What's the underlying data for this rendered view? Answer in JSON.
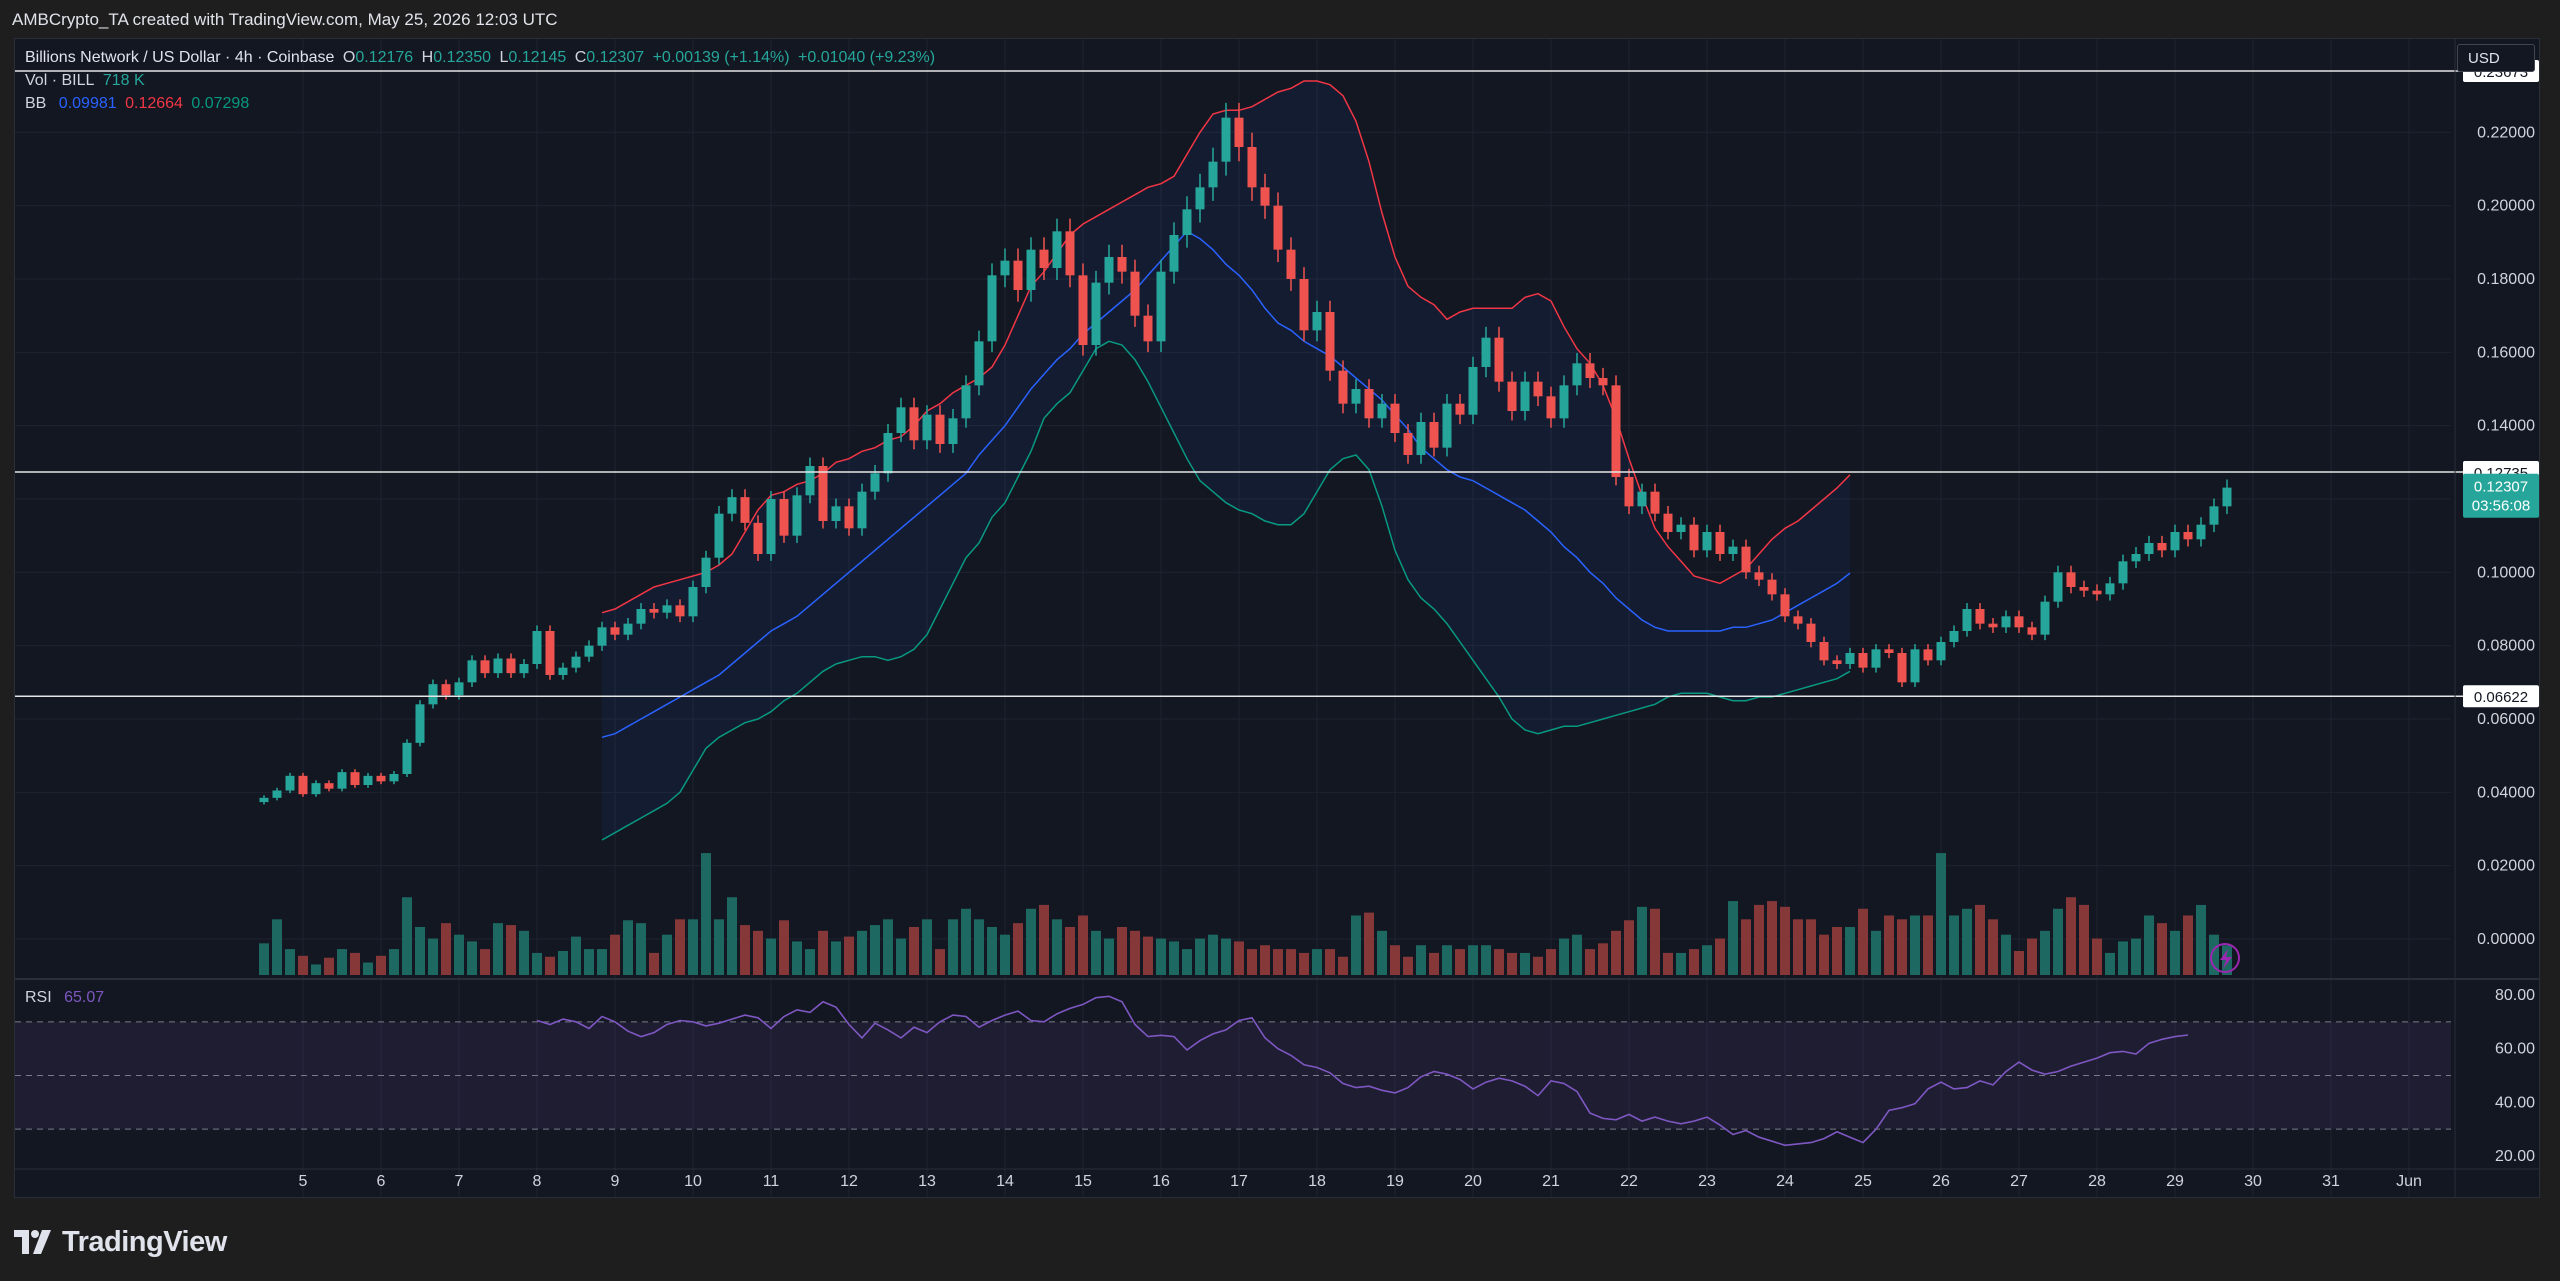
{
  "caption": "AMBCrypto_TA created with TradingView.com, May 25, 2026 12:03 UTC",
  "brand": "TradingView",
  "header": {
    "symbol": "Billions Network / US Dollar · 4h · Coinbase",
    "o_label": "O",
    "o_value": "0.12176",
    "h_label": "H",
    "h_value": "0.12350",
    "l_label": "L",
    "l_value": "0.12145",
    "c_label": "C",
    "c_value": "0.12307",
    "change": "+0.00139 (+1.14%)",
    "change2": "+0.01040 (+9.23%)",
    "vol_label": "Vol · BILL",
    "vol_value": "718 K",
    "bb_label": "BB",
    "bb_mid": "0.09981",
    "bb_upper": "0.12664",
    "bb_lower": "0.07298",
    "rsi_label": "RSI",
    "rsi_value": "65.07"
  },
  "currency_button": "USD",
  "colors": {
    "up": "#26a69a",
    "down": "#ef5350",
    "bb_mid": "#2962ff",
    "bb_upper": "#f23645",
    "bb_lower": "#089981",
    "rsi": "#7e57c2",
    "bg": "#131722",
    "grid": "#1f2330"
  },
  "chart_data": {
    "type": "candlestick",
    "price_axis": {
      "ticks": [
        "0.22000",
        "0.20000",
        "0.18000",
        "0.16000",
        "0.14000",
        "0.12000",
        "0.10000",
        "0.08000",
        "0.06000",
        "0.04000",
        "0.02000",
        "0.00000"
      ],
      "min": -0.015,
      "max": 0.24
    },
    "horizontal_lines": [
      {
        "price": 0.23673,
        "label": "0.23673"
      },
      {
        "price": 0.12735,
        "label": "0.12735"
      },
      {
        "price": 0.06622,
        "label": "0.06622"
      }
    ],
    "last_price": {
      "price": 0.12307,
      "label": "0.12307",
      "countdown": "03:56:08"
    },
    "time_axis": [
      "5",
      "6",
      "7",
      "8",
      "9",
      "10",
      "11",
      "12",
      "13",
      "14",
      "15",
      "16",
      "17",
      "18",
      "19",
      "20",
      "21",
      "22",
      "23",
      "24",
      "25",
      "26",
      "27",
      "28",
      "29",
      "30",
      "31",
      "Jun"
    ],
    "candles_per_day": 6,
    "first_candle_day": 4.5,
    "closes": [
      0.0385,
      0.0405,
      0.0445,
      0.0395,
      0.0425,
      0.041,
      0.0455,
      0.042,
      0.0445,
      0.043,
      0.045,
      0.0535,
      0.064,
      0.0695,
      0.0665,
      0.07,
      0.076,
      0.0725,
      0.0765,
      0.0725,
      0.075,
      0.084,
      0.072,
      0.074,
      0.077,
      0.08,
      0.085,
      0.083,
      0.086,
      0.09,
      0.089,
      0.091,
      0.088,
      0.096,
      0.104,
      0.116,
      0.1205,
      0.1135,
      0.105,
      0.12,
      0.11,
      0.121,
      0.129,
      0.114,
      0.118,
      0.112,
      0.122,
      0.127,
      0.138,
      0.145,
      0.136,
      0.143,
      0.135,
      0.142,
      0.151,
      0.163,
      0.181,
      0.185,
      0.177,
      0.188,
      0.183,
      0.193,
      0.181,
      0.162,
      0.179,
      0.186,
      0.182,
      0.17,
      0.163,
      0.182,
      0.192,
      0.199,
      0.205,
      0.212,
      0.224,
      0.216,
      0.205,
      0.2,
      0.188,
      0.18,
      0.166,
      0.171,
      0.155,
      0.146,
      0.15,
      0.142,
      0.146,
      0.138,
      0.132,
      0.141,
      0.134,
      0.146,
      0.143,
      0.156,
      0.164,
      0.152,
      0.144,
      0.152,
      0.148,
      0.142,
      0.151,
      0.157,
      0.153,
      0.151,
      0.126,
      0.118,
      0.122,
      0.116,
      0.111,
      0.113,
      0.106,
      0.111,
      0.105,
      0.107,
      0.1,
      0.098,
      0.094,
      0.088,
      0.086,
      0.081,
      0.076,
      0.075,
      0.078,
      0.074,
      0.079,
      0.078,
      0.07,
      0.079,
      0.076,
      0.081,
      0.084,
      0.09,
      0.086,
      0.085,
      0.088,
      0.085,
      0.083,
      0.092,
      0.1,
      0.096,
      0.095,
      0.094,
      0.097,
      0.103,
      0.105,
      0.108,
      0.106,
      0.111,
      0.109,
      0.113,
      0.118,
      0.1231
    ],
    "bb_start_index": 26,
    "bb_upper_values": [
      0.089,
      0.09,
      0.092,
      0.094,
      0.096,
      0.097,
      0.098,
      0.099,
      0.1,
      0.102,
      0.105,
      0.111,
      0.117,
      0.121,
      0.122,
      0.124,
      0.125,
      0.127,
      0.13,
      0.131,
      0.133,
      0.134,
      0.136,
      0.137,
      0.14,
      0.144,
      0.146,
      0.149,
      0.151,
      0.153,
      0.156,
      0.162,
      0.17,
      0.178,
      0.182,
      0.187,
      0.192,
      0.195,
      0.197,
      0.199,
      0.201,
      0.203,
      0.205,
      0.206,
      0.208,
      0.214,
      0.22,
      0.225,
      0.226,
      0.226,
      0.227,
      0.229,
      0.231,
      0.232,
      0.234,
      0.234,
      0.233,
      0.23,
      0.223,
      0.212,
      0.198,
      0.186,
      0.178,
      0.175,
      0.173,
      0.169,
      0.171,
      0.172,
      0.172,
      0.172,
      0.172,
      0.175,
      0.176,
      0.174,
      0.167,
      0.161,
      0.157,
      0.151,
      0.142,
      0.131,
      0.121,
      0.112,
      0.107,
      0.103,
      0.099,
      0.098,
      0.097,
      0.099,
      0.101,
      0.105,
      0.109,
      0.112,
      0.114,
      0.117,
      0.12,
      0.123,
      0.1266
    ],
    "bb_mid_values": [
      0.055,
      0.056,
      0.058,
      0.06,
      0.062,
      0.064,
      0.066,
      0.068,
      0.07,
      0.072,
      0.075,
      0.078,
      0.081,
      0.084,
      0.086,
      0.088,
      0.091,
      0.094,
      0.097,
      0.1,
      0.103,
      0.106,
      0.109,
      0.112,
      0.115,
      0.118,
      0.121,
      0.124,
      0.127,
      0.132,
      0.136,
      0.14,
      0.145,
      0.15,
      0.154,
      0.158,
      0.161,
      0.165,
      0.168,
      0.171,
      0.174,
      0.177,
      0.181,
      0.185,
      0.189,
      0.193,
      0.191,
      0.188,
      0.184,
      0.181,
      0.177,
      0.172,
      0.168,
      0.166,
      0.163,
      0.161,
      0.159,
      0.156,
      0.153,
      0.15,
      0.147,
      0.143,
      0.139,
      0.134,
      0.131,
      0.128,
      0.126,
      0.125,
      0.123,
      0.121,
      0.119,
      0.117,
      0.114,
      0.111,
      0.107,
      0.104,
      0.1,
      0.097,
      0.093,
      0.09,
      0.087,
      0.085,
      0.084,
      0.084,
      0.084,
      0.084,
      0.084,
      0.085,
      0.085,
      0.086,
      0.087,
      0.089,
      0.091,
      0.093,
      0.095,
      0.097,
      0.0998
    ],
    "bb_lower_values": [
      0.027,
      0.029,
      0.031,
      0.033,
      0.035,
      0.037,
      0.04,
      0.046,
      0.052,
      0.055,
      0.057,
      0.059,
      0.06,
      0.062,
      0.065,
      0.067,
      0.07,
      0.073,
      0.075,
      0.076,
      0.077,
      0.077,
      0.076,
      0.077,
      0.079,
      0.083,
      0.09,
      0.097,
      0.104,
      0.108,
      0.115,
      0.119,
      0.126,
      0.133,
      0.142,
      0.146,
      0.149,
      0.155,
      0.161,
      0.163,
      0.162,
      0.158,
      0.152,
      0.145,
      0.138,
      0.131,
      0.125,
      0.122,
      0.119,
      0.117,
      0.116,
      0.114,
      0.113,
      0.113,
      0.116,
      0.122,
      0.128,
      0.131,
      0.132,
      0.128,
      0.118,
      0.106,
      0.098,
      0.093,
      0.09,
      0.086,
      0.081,
      0.076,
      0.071,
      0.066,
      0.06,
      0.057,
      0.056,
      0.057,
      0.058,
      0.058,
      0.059,
      0.06,
      0.061,
      0.062,
      0.063,
      0.064,
      0.066,
      0.067,
      0.067,
      0.067,
      0.066,
      0.065,
      0.065,
      0.066,
      0.066,
      0.067,
      0.068,
      0.069,
      0.07,
      0.071,
      0.073
    ],
    "volume_relative": [
      0.33,
      0.58,
      0.27,
      0.2,
      0.11,
      0.18,
      0.27,
      0.23,
      0.13,
      0.2,
      0.27,
      0.81,
      0.5,
      0.38,
      0.54,
      0.42,
      0.35,
      0.27,
      0.54,
      0.52,
      0.46,
      0.23,
      0.19,
      0.25,
      0.4,
      0.27,
      0.27,
      0.42,
      0.57,
      0.54,
      0.23,
      0.42,
      0.58,
      0.58,
      1.27,
      0.58,
      0.81,
      0.52,
      0.46,
      0.38,
      0.57,
      0.35,
      0.27,
      0.46,
      0.35,
      0.4,
      0.46,
      0.52,
      0.58,
      0.38,
      0.5,
      0.58,
      0.27,
      0.58,
      0.69,
      0.58,
      0.5,
      0.42,
      0.54,
      0.69,
      0.73,
      0.58,
      0.5,
      0.62,
      0.46,
      0.38,
      0.5,
      0.46,
      0.4,
      0.38,
      0.35,
      0.27,
      0.38,
      0.42,
      0.38,
      0.35,
      0.27,
      0.31,
      0.27,
      0.27,
      0.23,
      0.27,
      0.27,
      0.19,
      0.62,
      0.65,
      0.46,
      0.31,
      0.19,
      0.31,
      0.23,
      0.31,
      0.27,
      0.31,
      0.31,
      0.27,
      0.23,
      0.23,
      0.19,
      0.27,
      0.38,
      0.42,
      0.27,
      0.33,
      0.46,
      0.57,
      0.71,
      0.69,
      0.23,
      0.23,
      0.27,
      0.31,
      0.38,
      0.77,
      0.58,
      0.73,
      0.77,
      0.71,
      0.58,
      0.58,
      0.42,
      0.5,
      0.5,
      0.69,
      0.46,
      0.62,
      0.58,
      0.62,
      0.62,
      1.27,
      0.62,
      0.69,
      0.73,
      0.58,
      0.42,
      0.25,
      0.38,
      0.46,
      0.69,
      0.81,
      0.73,
      0.38,
      0.23,
      0.35,
      0.38,
      0.62,
      0.54,
      0.46,
      0.62,
      0.73,
      0.42,
      0.31
    ],
    "rsi_axis": {
      "ticks": [
        "80.00",
        "60.00",
        "40.00",
        "20.00"
      ],
      "min": 20,
      "max": 80,
      "overbought": 70,
      "oversold": 30
    },
    "rsi_start_index": 21,
    "rsi_values": [
      70.5,
      69.0,
      71.0,
      70.0,
      67.5,
      72.0,
      70.0,
      66.5,
      64.5,
      66.0,
      69.0,
      70.5,
      70.0,
      68.5,
      69.5,
      71.0,
      72.5,
      71.5,
      67.5,
      72.0,
      74.5,
      73.5,
      77.5,
      75.5,
      69.0,
      64.0,
      69.5,
      67.0,
      64.0,
      68.0,
      66.0,
      70.0,
      72.5,
      72.0,
      68.0,
      70.5,
      72.5,
      74.0,
      70.5,
      70.0,
      73.0,
      75.0,
      76.5,
      79.0,
      79.5,
      77.5,
      69.0,
      64.5,
      65.0,
      64.5,
      59.5,
      63.0,
      65.5,
      67.0,
      70.5,
      71.5,
      64.0,
      60.0,
      57.5,
      54.0,
      53.0,
      51.0,
      47.0,
      45.5,
      46.0,
      44.5,
      43.5,
      45.5,
      49.5,
      51.5,
      50.5,
      48.5,
      45.0,
      47.5,
      49.0,
      48.0,
      46.0,
      42.5,
      48.0,
      47.0,
      44.0,
      36.0,
      34.0,
      33.5,
      35.5,
      33.0,
      34.5,
      33.0,
      32.0,
      33.0,
      34.5,
      31.5,
      28.0,
      29.5,
      27.0,
      25.5,
      24.0,
      24.5,
      25.0,
      26.5,
      29.0,
      27.0,
      25.0,
      30.0,
      37.0,
      38.0,
      39.5,
      45.0,
      47.5,
      45.0,
      45.5,
      48.0,
      46.5,
      51.5,
      55.0,
      52.0,
      50.5,
      51.5,
      53.5,
      55.0,
      56.5,
      58.5,
      59.0,
      58.0,
      62.0,
      63.5,
      64.5,
      65.1
    ]
  }
}
